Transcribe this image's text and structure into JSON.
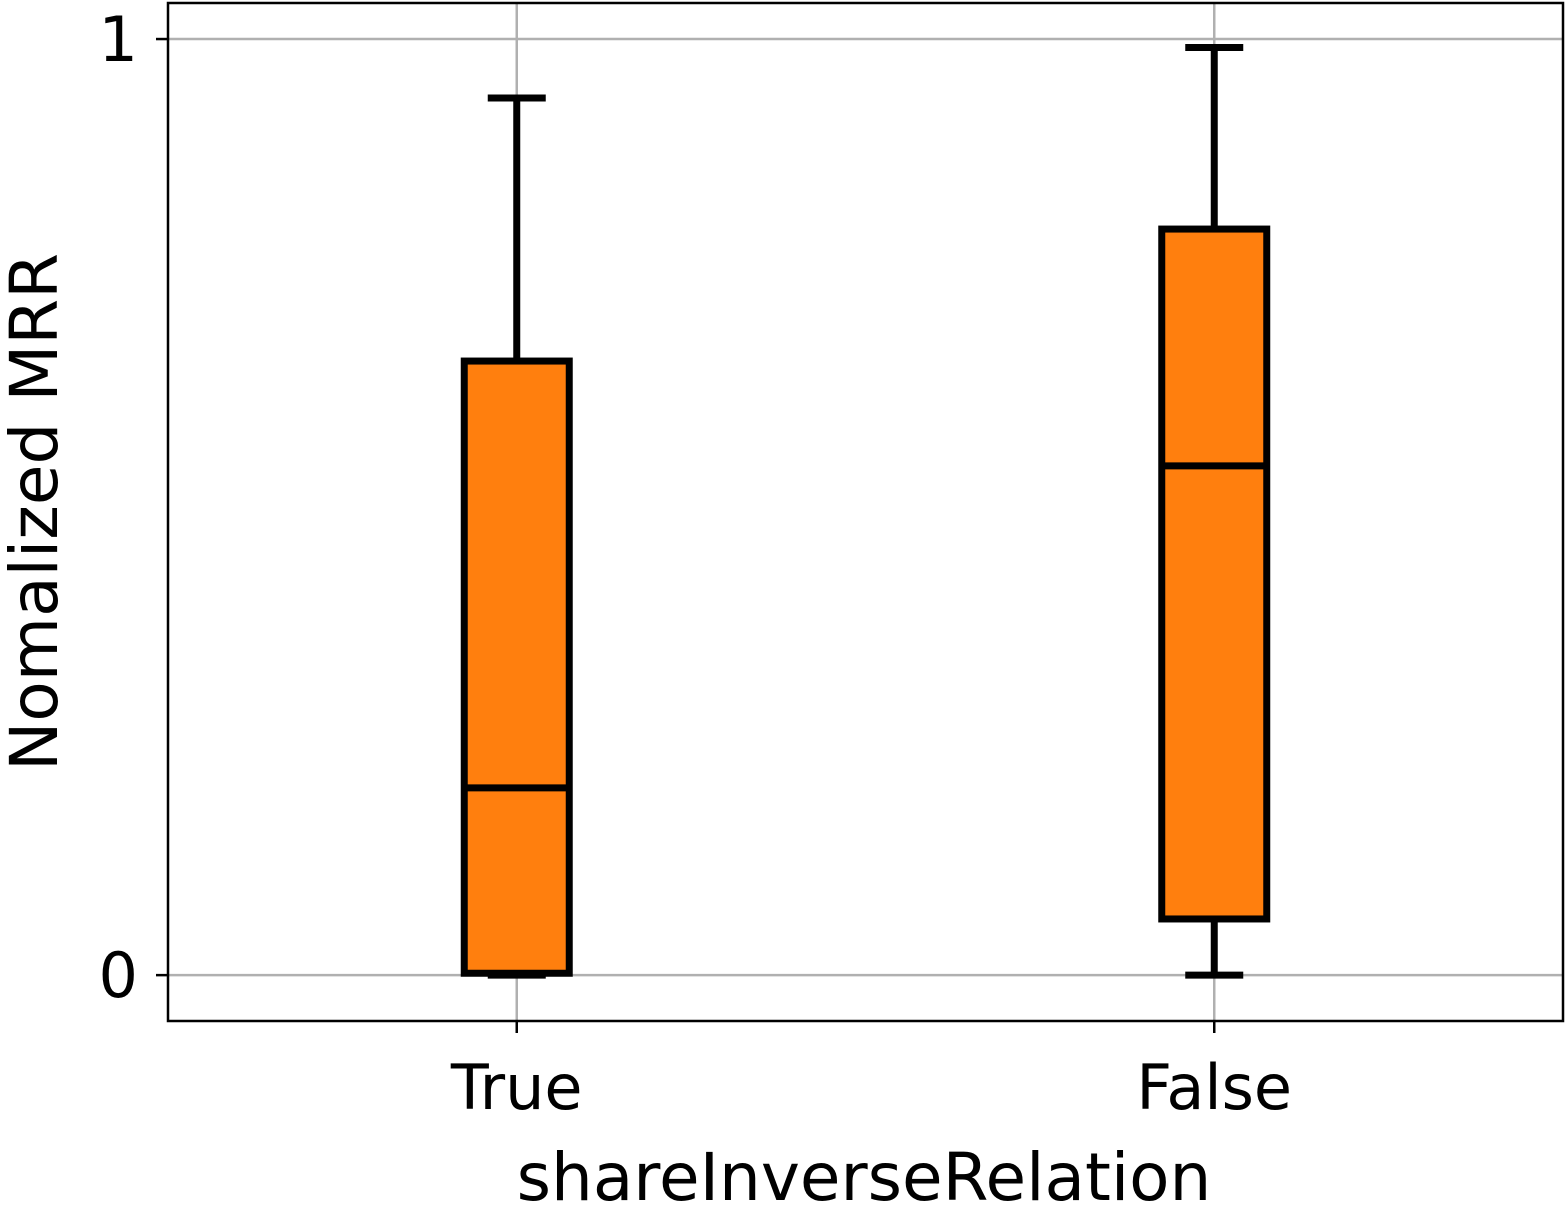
{
  "chart_data": {
    "type": "box",
    "x_label": "shareInverseRelation",
    "y_label": "Nomalized MRR",
    "categories": [
      "True",
      "False"
    ],
    "boxes": [
      {
        "whislo": 0,
        "q1": 0.002,
        "median": 0.2,
        "q3": 0.656,
        "whishi": 0.937
      },
      {
        "whislo": 0,
        "q1": 0.06,
        "median": 0.544,
        "q3": 0.797,
        "whishi": 0.991
      }
    ],
    "color": "#ff7f0e",
    "edge_color": "#000000",
    "ylim": [
      -0.049,
      1.0385
    ],
    "yticks": [
      0,
      1
    ],
    "grid": true
  }
}
